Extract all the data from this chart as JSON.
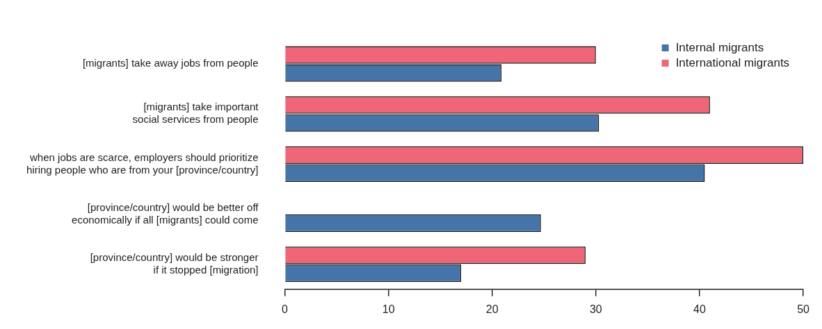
{
  "chart_data": {
    "type": "bar",
    "orientation": "horizontal",
    "categories": [
      "[migrants] take away jobs from people",
      "[migrants] take important\nsocial services from people",
      "when jobs are scarce, employers should prioritize\nhiring people who are from your [province/country]",
      "[province/country] would be better off\neconomically if all [migrants] could come",
      "[province/country] would be stronger\nif it stopped [migration]"
    ],
    "series": [
      {
        "name": "Internal migrants",
        "color": "#4575a8",
        "values": [
          20.9,
          30.3,
          40.5,
          24.7,
          17.0
        ]
      },
      {
        "name": "International migrants",
        "color": "#ee6677",
        "values": [
          30.0,
          41.0,
          50.0,
          null,
          29.0
        ]
      }
    ],
    "xlim": [
      0,
      50
    ],
    "xticks": [
      0,
      10,
      20,
      30,
      40,
      50
    ],
    "grid": false,
    "legend": "top right"
  }
}
